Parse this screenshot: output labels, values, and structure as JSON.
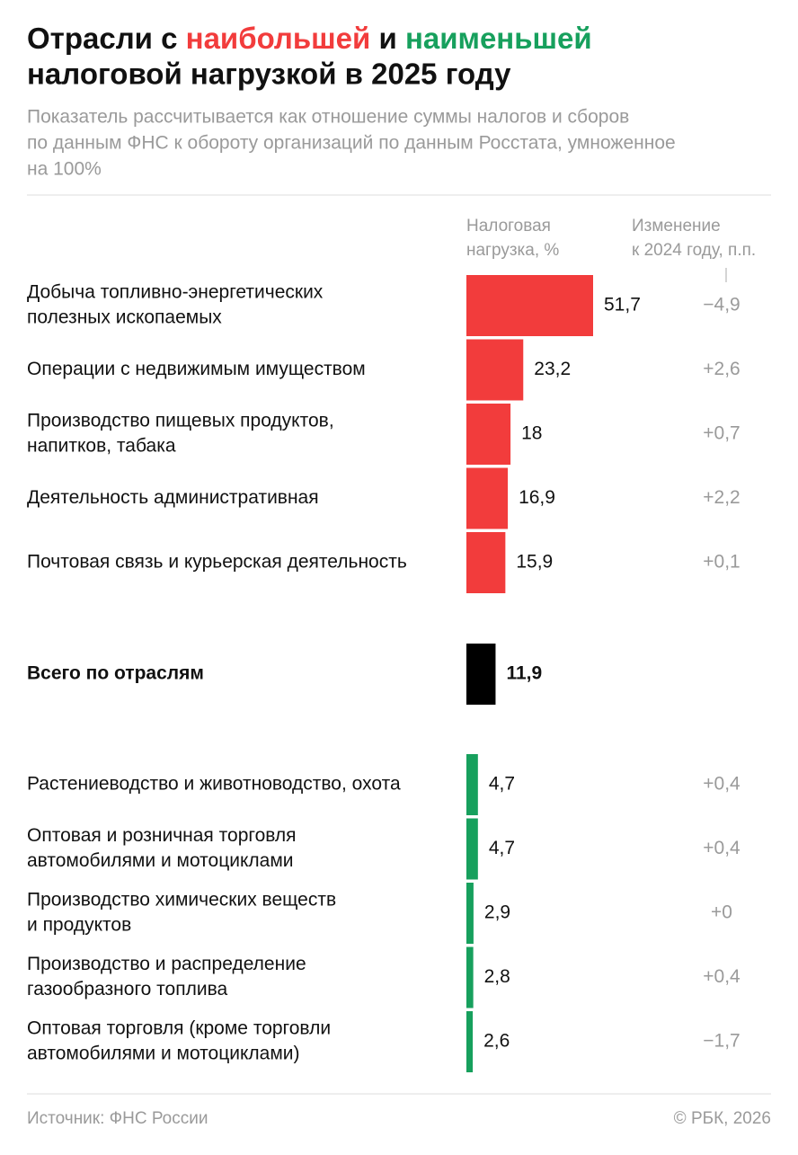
{
  "chart_data": {
    "type": "bar",
    "title": [
      "Отрасли с",
      "наибольшей",
      "и",
      "наименьшей",
      "налоговой нагрузкой в 2025 году"
    ],
    "title_colors": [
      "#f23c3c",
      "#17a05d"
    ],
    "subtitle": [
      "Показатель рассчитывается как отношение суммы налогов и сборов",
      "по данным ФНС к обороту организаций по данным Росстата, умноженное",
      "на 100%"
    ],
    "value_header": [
      "Налоговая",
      "нагрузка, %"
    ],
    "change_header": [
      "Изменение",
      "к 2024 году, п.п."
    ],
    "groups": [
      {
        "color": "#f23c3c",
        "bold": false,
        "categories": [
          [
            "Добыча топливно-энергетических",
            "полезных ископаемых"
          ],
          [
            "Операции с недвижимым имуществом"
          ],
          [
            "Производство пищевых продуктов,",
            "напитков, табака"
          ],
          [
            "Деятельность административная"
          ],
          [
            "Почтовая связь и курьерская деятельность"
          ]
        ],
        "values": [
          51.7,
          23.2,
          18,
          16.9,
          15.9
        ],
        "value_labels": [
          "51,7",
          "23,2",
          "18",
          "16,9",
          "15,9"
        ],
        "changes": [
          "−4,9",
          "+2,6",
          "+0,7",
          "+2,2",
          "+0,1"
        ]
      },
      {
        "color": "#000000",
        "bold": true,
        "categories": [
          [
            "Всего по отраслям"
          ]
        ],
        "values": [
          11.9
        ],
        "value_labels": [
          "11,9"
        ],
        "changes": [
          null
        ]
      },
      {
        "color": "#17a05d",
        "bold": false,
        "categories": [
          [
            "Растениеводство и животноводство, охота"
          ],
          [
            "Оптовая и розничная торговля",
            "автомобилями и мотоциклами"
          ],
          [
            "Производство химических веществ",
            "и продуктов"
          ],
          [
            "Производство и распределение",
            "газообразного топлива"
          ],
          [
            "Оптовая торговля (кроме торговли",
            "автомобилями и мотоциклами)"
          ]
        ],
        "values": [
          4.7,
          4.7,
          2.9,
          2.8,
          2.6
        ],
        "value_labels": [
          "4,7",
          "4,7",
          "2,9",
          "2,8",
          "2,6"
        ],
        "changes": [
          "+0,4",
          "+0,4",
          "+0",
          "+0,4",
          "−1,7"
        ]
      }
    ],
    "source": "Источник: ФНС России",
    "copyright": "© РБК, 2026"
  }
}
